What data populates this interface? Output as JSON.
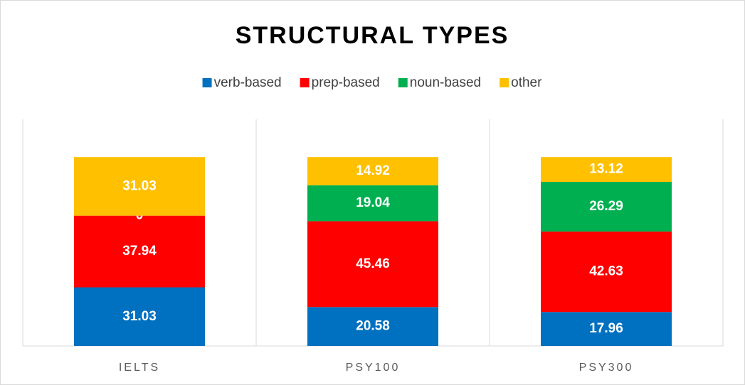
{
  "chart_data": {
    "type": "stacked_bar",
    "title": "STRUCTURAL TYPES",
    "categories": [
      "IELTS",
      "PSY100",
      "PSY300"
    ],
    "series": [
      {
        "name": "verb-based",
        "color": "#0070c0",
        "values": [
          31.03,
          20.58,
          17.96
        ]
      },
      {
        "name": "prep-based",
        "color": "#ff0000",
        "values": [
          37.94,
          45.46,
          42.63
        ]
      },
      {
        "name": "noun-based",
        "color": "#00b050",
        "values": [
          0,
          19.04,
          26.29
        ]
      },
      {
        "name": "other",
        "color": "#ffc000",
        "values": [
          31.03,
          14.92,
          13.12
        ]
      }
    ],
    "ylim": [
      0,
      120
    ],
    "legend": "top"
  }
}
